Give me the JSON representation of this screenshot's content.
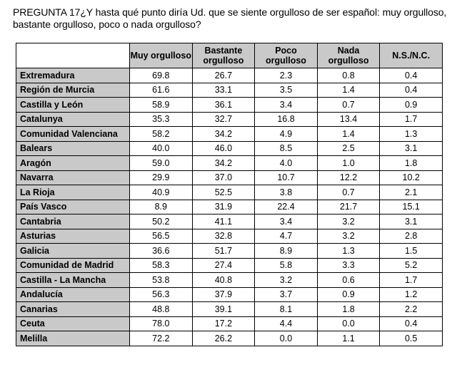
{
  "question_text": "PREGUNTA 17¿Y hasta qué punto diría Ud. que se siente orgulloso de ser español: muy orgulloso, bastante orgulloso, poco o nada orgulloso?",
  "table": {
    "headers": [
      "Muy orgulloso",
      "Bastante orgulloso",
      "Poco orgulloso",
      "Nada orgulloso",
      "N.S./N.C."
    ],
    "rows": [
      {
        "region": "Extremadura",
        "values": [
          "69.8",
          "26.7",
          "2.3",
          "0.8",
          "0.4"
        ]
      },
      {
        "region": "Región de Murcia",
        "values": [
          "61.6",
          "33.1",
          "3.5",
          "1.4",
          "0.4"
        ]
      },
      {
        "region": "Castilla y León",
        "values": [
          "58.9",
          "36.1",
          "3.4",
          "0.7",
          "0.9"
        ]
      },
      {
        "region": "Catalunya",
        "values": [
          "35.3",
          "32.7",
          "16.8",
          "13.4",
          "1.7"
        ]
      },
      {
        "region": "Comunidad Valenciana",
        "values": [
          "58.2",
          "34.2",
          "4.9",
          "1.4",
          "1.3"
        ]
      },
      {
        "region": "Balears",
        "values": [
          "40.0",
          "46.0",
          "8.5",
          "2.5",
          "3.1"
        ]
      },
      {
        "region": "Aragón",
        "values": [
          "59.0",
          "34.2",
          "4.0",
          "1.0",
          "1.8"
        ]
      },
      {
        "region": "Navarra",
        "values": [
          "29.9",
          "37.0",
          "10.7",
          "12.2",
          "10.2"
        ]
      },
      {
        "region": "La Rioja",
        "values": [
          "40.9",
          "52.5",
          "3.8",
          "0.7",
          "2.1"
        ]
      },
      {
        "region": "País Vasco",
        "values": [
          "8.9",
          "31.9",
          "22.4",
          "21.7",
          "15.1"
        ]
      },
      {
        "region": "Cantabria",
        "values": [
          "50.2",
          "41.1",
          "3.4",
          "3.2",
          "3.1"
        ]
      },
      {
        "region": "Asturias",
        "values": [
          "56.5",
          "32.8",
          "4.7",
          "3.2",
          "2.8"
        ]
      },
      {
        "region": "Galicia",
        "values": [
          "36.6",
          "51.7",
          "8.9",
          "1.3",
          "1.5"
        ]
      },
      {
        "region": "Comunidad de Madrid",
        "values": [
          "58.3",
          "27.4",
          "5.8",
          "3.3",
          "5.2"
        ]
      },
      {
        "region": "Castilla - La Mancha",
        "values": [
          "53.8",
          "40.8",
          "3.2",
          "0.6",
          "1.7"
        ]
      },
      {
        "region": "Andalucía",
        "values": [
          "56.3",
          "37.9",
          "3.7",
          "0.9",
          "1.2"
        ]
      },
      {
        "region": "Canarias",
        "values": [
          "48.8",
          "39.1",
          "8.1",
          "1.8",
          "2.2"
        ]
      },
      {
        "region": "Ceuta",
        "values": [
          "78.0",
          "17.2",
          "4.4",
          "0.0",
          "0.4"
        ]
      },
      {
        "region": "Melilla",
        "values": [
          "72.2",
          "26.2",
          "0.0",
          "1.1",
          "0.5"
        ]
      }
    ]
  }
}
